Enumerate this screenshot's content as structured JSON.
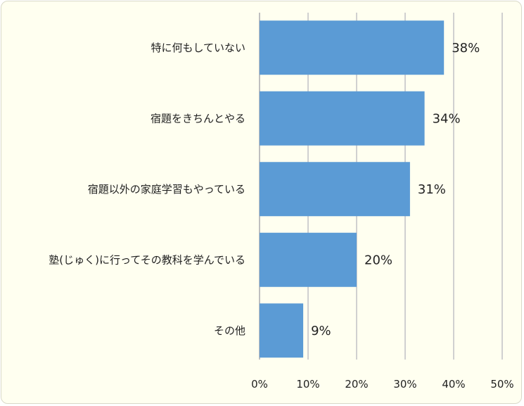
{
  "chart_data": {
    "type": "bar",
    "orientation": "horizontal",
    "title": "",
    "xlabel": "",
    "ylabel": "",
    "categories": [
      "特に何もしていない",
      "宿題をきちんとやる",
      "宿題以外の家庭学習もやっている",
      "塾(じゅく)に行ってその教科を学んでいる",
      "その他"
    ],
    "values": [
      38,
      34,
      31,
      20,
      9
    ],
    "value_labels": [
      "38%",
      "34%",
      "31%",
      "20%",
      "9%"
    ],
    "xlim": [
      0,
      50
    ],
    "ticks": [
      0,
      10,
      20,
      30,
      40,
      50
    ],
    "tick_labels": [
      "0%",
      "10%",
      "20%",
      "30%",
      "40%",
      "50%"
    ],
    "grid": true,
    "legend": "none",
    "bar_color": "#5b9bd5",
    "background_color": "#fffff0"
  }
}
